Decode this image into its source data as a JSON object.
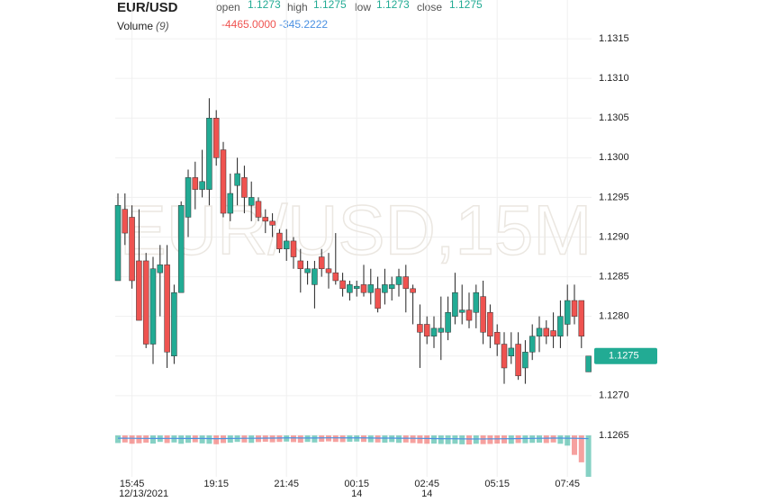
{
  "chart_data": {
    "type": "candlestick",
    "title": "EUR/USD",
    "watermark": "EUR/USD,15M",
    "ohlc_labels": [
      "open",
      "high",
      "low",
      "close"
    ],
    "up_color": "#22ab94",
    "down_color": "#ef5350",
    "categories": [
      null,
      null,
      "15:45",
      null,
      null,
      null,
      null,
      null,
      null,
      null,
      null,
      null,
      null,
      null,
      "19:15",
      null,
      null,
      null,
      null,
      null,
      null,
      null,
      null,
      null,
      "21:45",
      null,
      null,
      null,
      null,
      null,
      null,
      null,
      null,
      null,
      "00:15",
      null,
      null,
      null,
      null,
      null,
      null,
      null,
      null,
      null,
      "02:45",
      null,
      null,
      null,
      null,
      null,
      null,
      null,
      null,
      null,
      "05:15",
      null,
      null,
      null,
      null,
      null,
      null,
      null,
      null,
      null,
      "07:45",
      null,
      null,
      null
    ],
    "category_sublabels": [
      null,
      null,
      "12/13/2021",
      null,
      null,
      null,
      null,
      null,
      null,
      null,
      null,
      null,
      null,
      null,
      null,
      null,
      null,
      null,
      null,
      null,
      null,
      null,
      null,
      null,
      null,
      null,
      null,
      null,
      null,
      null,
      null,
      null,
      null,
      null,
      "14",
      null,
      null,
      null,
      null,
      null,
      null,
      null,
      null,
      null,
      "14",
      null,
      null,
      null,
      null,
      null,
      null,
      null,
      null,
      null,
      null,
      null,
      null,
      null,
      null,
      null,
      null,
      null,
      null,
      null,
      null,
      null,
      null,
      null
    ],
    "open": [
      1.12845,
      1.12935,
      1.12925,
      1.1287,
      1.1287,
      1.12765,
      1.12855,
      1.12865,
      1.1275,
      1.1283,
      1.12925,
      1.12975,
      1.1296,
      1.1296,
      1.1305,
      1.1301,
      1.1293,
      1.12965,
      1.12975,
      1.1294,
      1.12945,
      1.12925,
      1.1292,
      1.12905,
      1.12885,
      1.12895,
      1.1287,
      1.12855,
      1.1284,
      1.12875,
      1.1286,
      1.12855,
      1.12845,
      1.1283,
      1.12835,
      1.1284,
      1.1283,
      1.12835,
      1.1283,
      1.12835,
      1.1284,
      1.1285,
      1.12835,
      1.1279,
      1.1279,
      1.12775,
      1.1278,
      1.1278,
      1.128,
      1.12805,
      1.12808,
      1.12805,
      1.12825,
      1.12805,
      1.1278,
      1.12765,
      1.1275,
      1.12765,
      1.12735,
      1.12755,
      1.12775,
      1.12785,
      1.12782,
      1.12775,
      1.1279,
      1.1282,
      1.1282,
      1.1273
    ],
    "high": [
      1.12955,
      1.12955,
      1.1294,
      1.12935,
      1.1288,
      1.12875,
      1.1289,
      1.1289,
      1.1284,
      1.12945,
      1.12985,
      1.12995,
      1.1301,
      1.13075,
      1.1306,
      1.1302,
      1.1298,
      1.13,
      1.1299,
      1.1297,
      1.1295,
      1.12935,
      1.1293,
      1.1291,
      1.1291,
      1.129,
      1.12885,
      1.1287,
      1.1287,
      1.12885,
      1.1288,
      1.12905,
      1.12855,
      1.12845,
      1.12845,
      1.12865,
      1.1286,
      1.1285,
      1.1286,
      1.1285,
      1.1286,
      1.12865,
      1.1284,
      1.12815,
      1.128,
      1.128,
      1.12825,
      1.12825,
      1.12855,
      1.1284,
      1.1283,
      1.1284,
      1.12845,
      1.12815,
      1.1279,
      1.1278,
      1.1278,
      1.1278,
      1.1277,
      1.1279,
      1.128,
      1.12795,
      1.12805,
      1.1282,
      1.1284,
      1.1284,
      1.1282,
      1.1275
    ],
    "low": [
      1.12845,
      1.1289,
      1.12835,
      1.12795,
      1.1276,
      1.1274,
      1.128,
      1.12735,
      1.1274,
      1.1283,
      1.129,
      1.12935,
      1.1295,
      1.1294,
      1.1299,
      1.12925,
      1.1292,
      1.1294,
      1.1293,
      1.1292,
      1.1292,
      1.12905,
      1.129,
      1.1288,
      1.1287,
      1.1286,
      1.1283,
      1.1284,
      1.1281,
      1.1285,
      1.12835,
      1.1284,
      1.12825,
      1.1282,
      1.12825,
      1.12825,
      1.12815,
      1.12805,
      1.12815,
      1.1282,
      1.12825,
      1.12805,
      1.1279,
      1.12735,
      1.12765,
      1.1276,
      1.12745,
      1.1277,
      1.1279,
      1.1279,
      1.12785,
      1.12785,
      1.12765,
      1.1276,
      1.1275,
      1.12715,
      1.1274,
      1.1272,
      1.12715,
      1.12745,
      1.12755,
      1.12765,
      1.1276,
      1.1276,
      1.12775,
      1.1279,
      1.1276,
      1.1273
    ],
    "close": [
      1.1294,
      1.12905,
      1.12845,
      1.12795,
      1.12765,
      1.1286,
      1.12865,
      1.12755,
      1.1283,
      1.1294,
      1.12975,
      1.1296,
      1.1297,
      1.1305,
      1.13,
      1.1293,
      1.12955,
      1.1298,
      1.1295,
      1.1295,
      1.12925,
      1.1292,
      1.12915,
      1.12885,
      1.12895,
      1.12875,
      1.1286,
      1.1286,
      1.1286,
      1.1286,
      1.12855,
      1.12845,
      1.12835,
      1.1284,
      1.12838,
      1.1283,
      1.1284,
      1.1281,
      1.1284,
      1.1284,
      1.1285,
      1.12835,
      1.1283,
      1.1278,
      1.12775,
      1.12785,
      1.12785,
      1.12805,
      1.1283,
      1.12808,
      1.12795,
      1.1283,
      1.1278,
      1.12775,
      1.12765,
      1.12735,
      1.1276,
      1.12725,
      1.12755,
      1.12775,
      1.12785,
      1.12775,
      1.12775,
      1.128,
      1.1282,
      1.128,
      1.12775,
      1.1275
    ],
    "ylim": [
      1.126,
      1.132
    ],
    "yticks": [
      1.1265,
      {
        "value": 1.127,
        "label": "1.1270"
      },
      1.1275,
      {
        "value": 1.128,
        "label": "1.1280"
      },
      1.1285,
      {
        "value": 1.129,
        "label": "1.1290"
      },
      1.1295,
      {
        "value": 1.13,
        "label": "1.1300"
      },
      1.1305,
      {
        "value": 1.131,
        "label": "1.1310"
      },
      1.1315
    ],
    "grid": true,
    "volume": {
      "title": "Volume",
      "period": "(9)",
      "ma_color": "#4a90e2",
      "values": [
        -820,
        -760,
        -900,
        -850,
        -780,
        -880,
        -700,
        -820,
        -760,
        -900,
        -800,
        -740,
        -860,
        -900,
        -950,
        -820,
        -780,
        -700,
        -760,
        -800,
        -720,
        -680,
        -740,
        -700,
        -660,
        -720,
        -780,
        -700,
        -760,
        -680,
        -640,
        -700,
        -720,
        -680,
        -660,
        -700,
        -740,
        -760,
        -780,
        -720,
        -800,
        -760,
        -820,
        -860,
        -900,
        -880,
        -920,
        -940,
        -900,
        -960,
        -980,
        -900,
        -940,
        -920,
        -880,
        -860,
        -900,
        -820,
        -840,
        -800,
        -780,
        -820,
        -760,
        -900,
        -1100,
        -2100,
        -2900,
        -4465
      ],
      "value_labels": [
        null,
        null,
        null,
        null,
        null,
        null,
        null,
        null,
        null,
        null,
        null,
        null,
        null,
        null,
        null,
        null,
        null,
        null,
        null,
        null,
        null,
        null,
        null,
        null,
        null,
        null,
        null,
        null,
        null,
        null,
        null,
        null,
        null,
        null,
        null,
        null,
        null,
        null,
        null,
        null,
        null,
        null,
        null,
        null,
        null,
        null,
        null,
        null,
        null,
        null,
        null,
        null,
        null,
        null,
        null,
        null,
        null,
        null,
        null,
        null,
        null,
        null,
        null,
        null,
        null,
        null,
        null,
        "-4465.0000"
      ],
      "ma_values": [
        -300,
        -300,
        -310,
        -320,
        -320,
        -330,
        -330,
        -320,
        -320,
        -330,
        -330,
        -320,
        -330,
        -340,
        -350,
        -340,
        -330,
        -320,
        -310,
        -310,
        -300,
        -290,
        -290,
        -280,
        -270,
        -270,
        -280,
        -280,
        -280,
        -270,
        -260,
        -260,
        -270,
        -270,
        -270,
        -270,
        -280,
        -290,
        -290,
        -290,
        -300,
        -300,
        -310,
        -320,
        -330,
        -340,
        -350,
        -360,
        -360,
        -370,
        -380,
        -380,
        -380,
        -370,
        -370,
        -360,
        -350,
        -340,
        -330,
        -320,
        -310,
        -300,
        -290,
        -290,
        -300,
        -310,
        -330,
        -345.2222
      ],
      "ma_value_labels": [
        null,
        null,
        null,
        null,
        null,
        null,
        null,
        null,
        null,
        null,
        null,
        null,
        null,
        null,
        null,
        null,
        null,
        null,
        null,
        null,
        null,
        null,
        null,
        null,
        null,
        null,
        null,
        null,
        null,
        null,
        null,
        null,
        null,
        null,
        null,
        null,
        null,
        null,
        null,
        null,
        null,
        null,
        null,
        null,
        null,
        null,
        null,
        null,
        null,
        null,
        null,
        null,
        null,
        null,
        null,
        null,
        null,
        null,
        null,
        null,
        null,
        null,
        null,
        null,
        null,
        null,
        null,
        "-345.2222"
      ]
    }
  }
}
